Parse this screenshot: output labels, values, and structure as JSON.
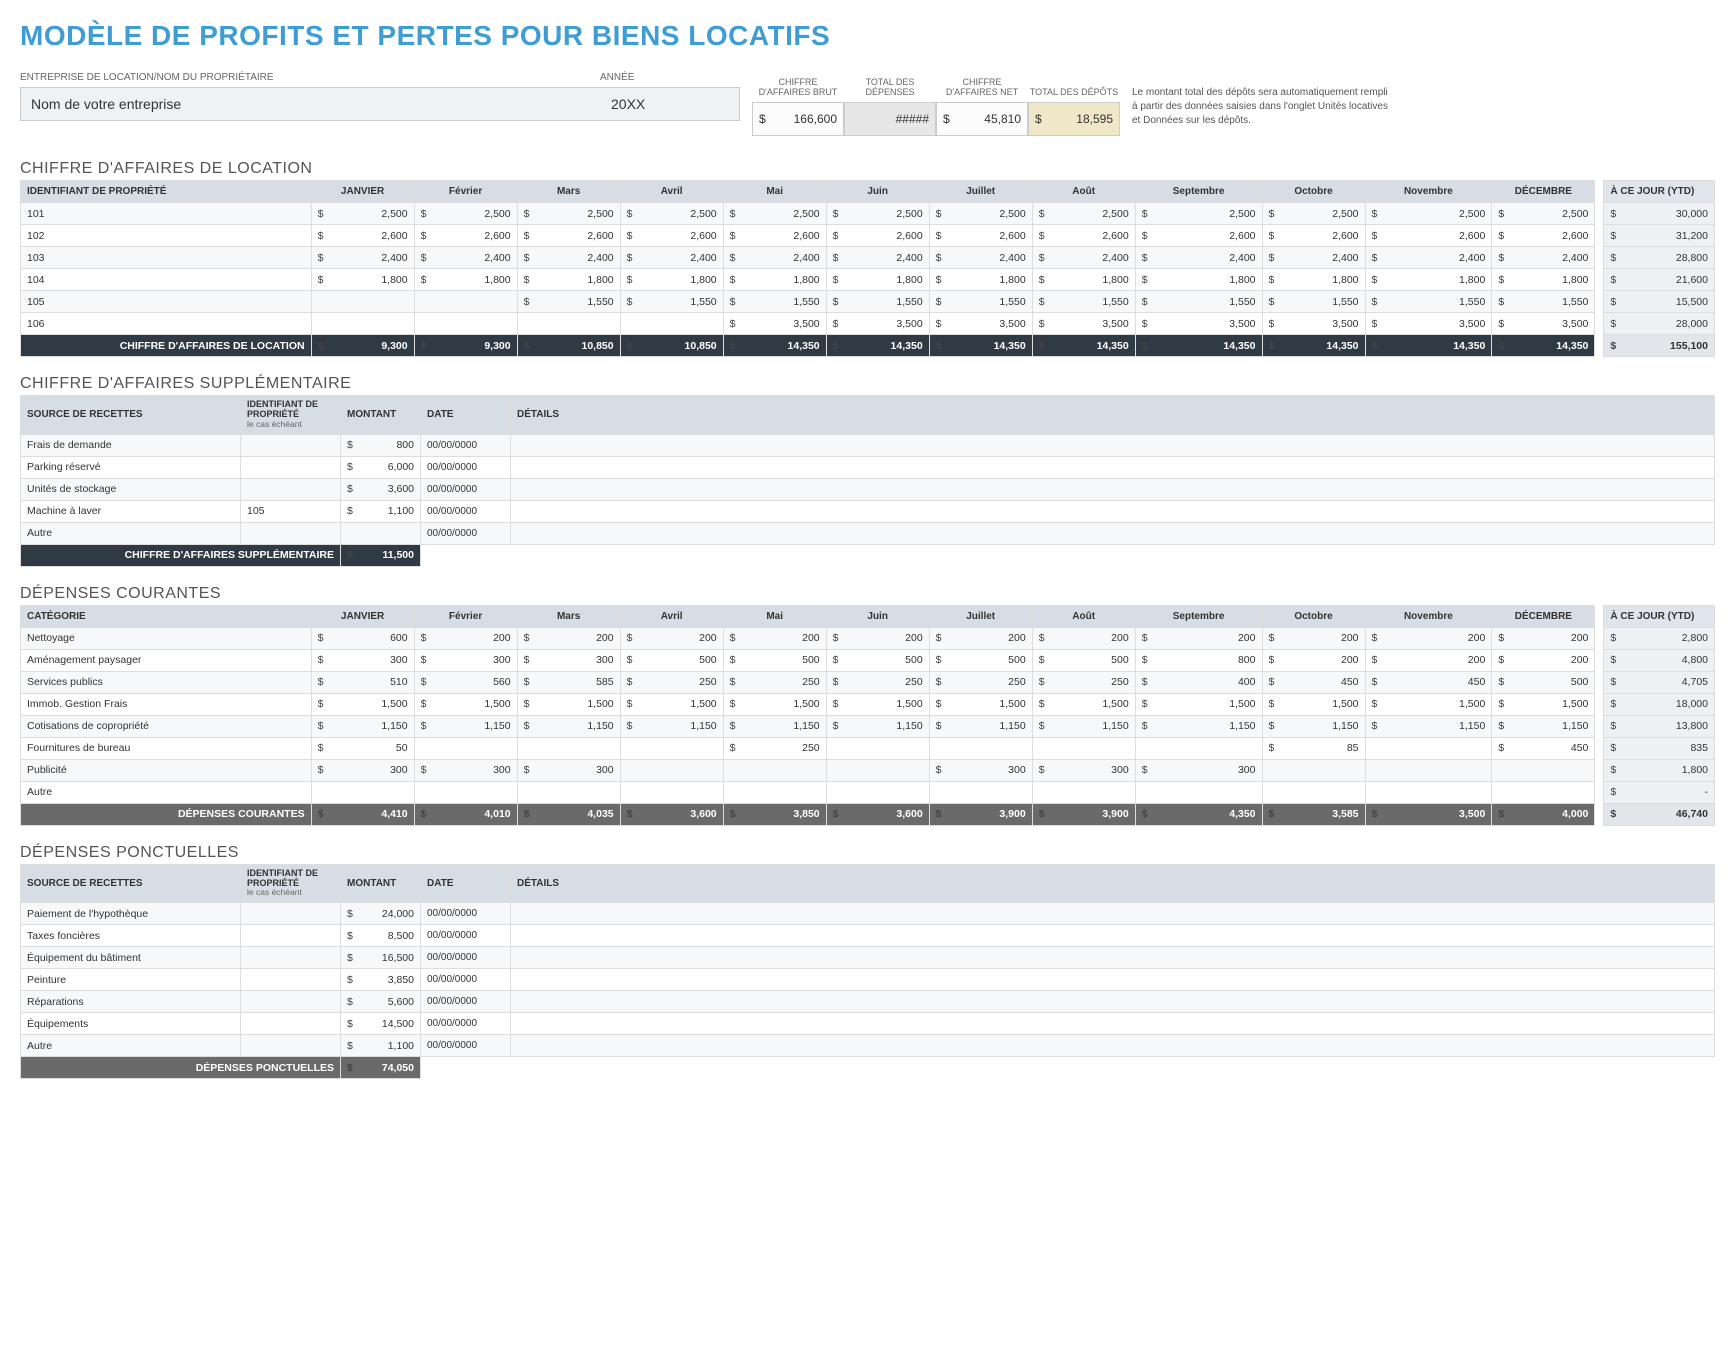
{
  "title": "MODÈLE DE PROFITS ET PERTES POUR BIENS LOCATIFS",
  "header": {
    "company_label": "ENTREPRISE DE LOCATION/NOM DU PROPRIÉTAIRE",
    "year_label": "ANNÉE",
    "company_value": "Nom de votre entreprise",
    "year_value": "20XX"
  },
  "summary": {
    "gross_label": "CHIFFRE D'AFFAIRES BRUT",
    "gross_value": "166,600",
    "exp_label": "TOTAL DES DÉPENSES",
    "exp_value": "#####",
    "net_label": "CHIFFRE D'AFFAIRES NET",
    "net_value": "45,810",
    "dep_label": "TOTAL DES DÉPÔTS",
    "dep_value": "18,595"
  },
  "note": "Le montant total des dépôts sera automatiquement rempli à partir des données saisies dans l'onglet Unités locatives et Données sur les dépôts.",
  "months": [
    "JANVIER",
    "Février",
    "Mars",
    "Avril",
    "Mai",
    "Juin",
    "Juillet",
    "Août",
    "Septembre",
    "Octobre",
    "Novembre",
    "DÉCEMBRE"
  ],
  "ytd_label": "À CE JOUR (YTD)",
  "rental": {
    "section": "CHIFFRE D'AFFAIRES DE LOCATION",
    "id_label": "IDENTIFIANT DE PROPRIÉTÉ",
    "rows": [
      {
        "id": "101",
        "v": [
          "2,500",
          "2,500",
          "2,500",
          "2,500",
          "2,500",
          "2,500",
          "2,500",
          "2,500",
          "2,500",
          "2,500",
          "2,500",
          "2,500"
        ],
        "ytd": "30,000"
      },
      {
        "id": "102",
        "v": [
          "2,600",
          "2,600",
          "2,600",
          "2,600",
          "2,600",
          "2,600",
          "2,600",
          "2,600",
          "2,600",
          "2,600",
          "2,600",
          "2,600"
        ],
        "ytd": "31,200"
      },
      {
        "id": "103",
        "v": [
          "2,400",
          "2,400",
          "2,400",
          "2,400",
          "2,400",
          "2,400",
          "2,400",
          "2,400",
          "2,400",
          "2,400",
          "2,400",
          "2,400"
        ],
        "ytd": "28,800"
      },
      {
        "id": "104",
        "v": [
          "1,800",
          "1,800",
          "1,800",
          "1,800",
          "1,800",
          "1,800",
          "1,800",
          "1,800",
          "1,800",
          "1,800",
          "1,800",
          "1,800"
        ],
        "ytd": "21,600"
      },
      {
        "id": "105",
        "v": [
          "",
          "",
          "1,550",
          "1,550",
          "1,550",
          "1,550",
          "1,550",
          "1,550",
          "1,550",
          "1,550",
          "1,550",
          "1,550"
        ],
        "ytd": "15,500"
      },
      {
        "id": "106",
        "v": [
          "",
          "",
          "",
          "",
          "3,500",
          "3,500",
          "3,500",
          "3,500",
          "3,500",
          "3,500",
          "3,500",
          "3,500"
        ],
        "ytd": "28,000"
      }
    ],
    "totals_label": "CHIFFRE D'AFFAIRES DE LOCATION",
    "totals": [
      "9,300",
      "9,300",
      "10,850",
      "10,850",
      "14,350",
      "14,350",
      "14,350",
      "14,350",
      "14,350",
      "14,350",
      "14,350",
      "14,350"
    ],
    "ytd_total": "155,100"
  },
  "additional": {
    "section": "CHIFFRE D'AFFAIRES SUPPLÉMENTAIRE",
    "headers": {
      "source": "SOURCE DE RECETTES",
      "pid": "IDENTIFIANT DE PROPRIÉTÉ",
      "pid_sub": "le cas échéant",
      "amount": "MONTANT",
      "date": "DATE",
      "details": "DÉTAILS"
    },
    "rows": [
      {
        "source": "Frais de demande",
        "pid": "",
        "amount": "800",
        "date": "00/00/0000",
        "details": ""
      },
      {
        "source": "Parking réservé",
        "pid": "",
        "amount": "6,000",
        "date": "00/00/0000",
        "details": ""
      },
      {
        "source": "Unités de stockage",
        "pid": "",
        "amount": "3,600",
        "date": "00/00/0000",
        "details": ""
      },
      {
        "source": "Machine à laver",
        "pid": "105",
        "amount": "1,100",
        "date": "00/00/0000",
        "details": ""
      },
      {
        "source": "Autre",
        "pid": "",
        "amount": "",
        "date": "00/00/0000",
        "details": ""
      }
    ],
    "totals_label": "CHIFFRE D'AFFAIRES SUPPLÉMENTAIRE",
    "total": "11,500"
  },
  "recurring": {
    "section": "DÉPENSES COURANTES",
    "cat_label": "CATÉGORIE",
    "rows": [
      {
        "cat": "Nettoyage",
        "v": [
          "600",
          "200",
          "200",
          "200",
          "200",
          "200",
          "200",
          "200",
          "200",
          "200",
          "200",
          "200"
        ],
        "ytd": "2,800"
      },
      {
        "cat": "Aménagement paysager",
        "v": [
          "300",
          "300",
          "300",
          "500",
          "500",
          "500",
          "500",
          "500",
          "800",
          "200",
          "200",
          "200"
        ],
        "ytd": "4,800"
      },
      {
        "cat": "Services publics",
        "v": [
          "510",
          "560",
          "585",
          "250",
          "250",
          "250",
          "250",
          "250",
          "400",
          "450",
          "450",
          "500"
        ],
        "ytd": "4,705"
      },
      {
        "cat": "Immob. Gestion Frais",
        "v": [
          "1,500",
          "1,500",
          "1,500",
          "1,500",
          "1,500",
          "1,500",
          "1,500",
          "1,500",
          "1,500",
          "1,500",
          "1,500",
          "1,500"
        ],
        "ytd": "18,000"
      },
      {
        "cat": "Cotisations de copropriété",
        "v": [
          "1,150",
          "1,150",
          "1,150",
          "1,150",
          "1,150",
          "1,150",
          "1,150",
          "1,150",
          "1,150",
          "1,150",
          "1,150",
          "1,150"
        ],
        "ytd": "13,800"
      },
      {
        "cat": "Fournitures de bureau",
        "v": [
          "50",
          "",
          "",
          "",
          "250",
          "",
          "",
          "",
          "",
          "85",
          "",
          "450"
        ],
        "ytd": "835"
      },
      {
        "cat": "Publicité",
        "v": [
          "300",
          "300",
          "300",
          "",
          "",
          "",
          "300",
          "300",
          "300",
          "",
          "",
          ""
        ],
        "ytd": "1,800"
      },
      {
        "cat": "Autre",
        "v": [
          "",
          "",
          "",
          "",
          "",
          "",
          "",
          "",
          "",
          "",
          "",
          ""
        ],
        "ytd": "-"
      }
    ],
    "totals_label": "DÉPENSES COURANTES",
    "totals": [
      "4,410",
      "4,010",
      "4,035",
      "3,600",
      "3,850",
      "3,600",
      "3,900",
      "3,900",
      "4,350",
      "3,585",
      "3,500",
      "4,000"
    ],
    "ytd_total": "46,740"
  },
  "onetime": {
    "section": "DÉPENSES PONCTUELLES",
    "rows": [
      {
        "source": "Paiement de l'hypothèque",
        "pid": "",
        "amount": "24,000",
        "date": "00/00/0000",
        "details": ""
      },
      {
        "source": "Taxes foncières",
        "pid": "",
        "amount": "8,500",
        "date": "00/00/0000",
        "details": ""
      },
      {
        "source": "Équipement du bâtiment",
        "pid": "",
        "amount": "16,500",
        "date": "00/00/0000",
        "details": ""
      },
      {
        "source": "Peinture",
        "pid": "",
        "amount": "3,850",
        "date": "00/00/0000",
        "details": ""
      },
      {
        "source": "Réparations",
        "pid": "",
        "amount": "5,600",
        "date": "00/00/0000",
        "details": ""
      },
      {
        "source": "Équipements",
        "pid": "",
        "amount": "14,500",
        "date": "00/00/0000",
        "details": ""
      },
      {
        "source": "Autre",
        "pid": "",
        "amount": "1,100",
        "date": "00/00/0000",
        "details": ""
      }
    ],
    "totals_label": "DÉPENSES PONCTUELLES",
    "total": "74,050"
  }
}
